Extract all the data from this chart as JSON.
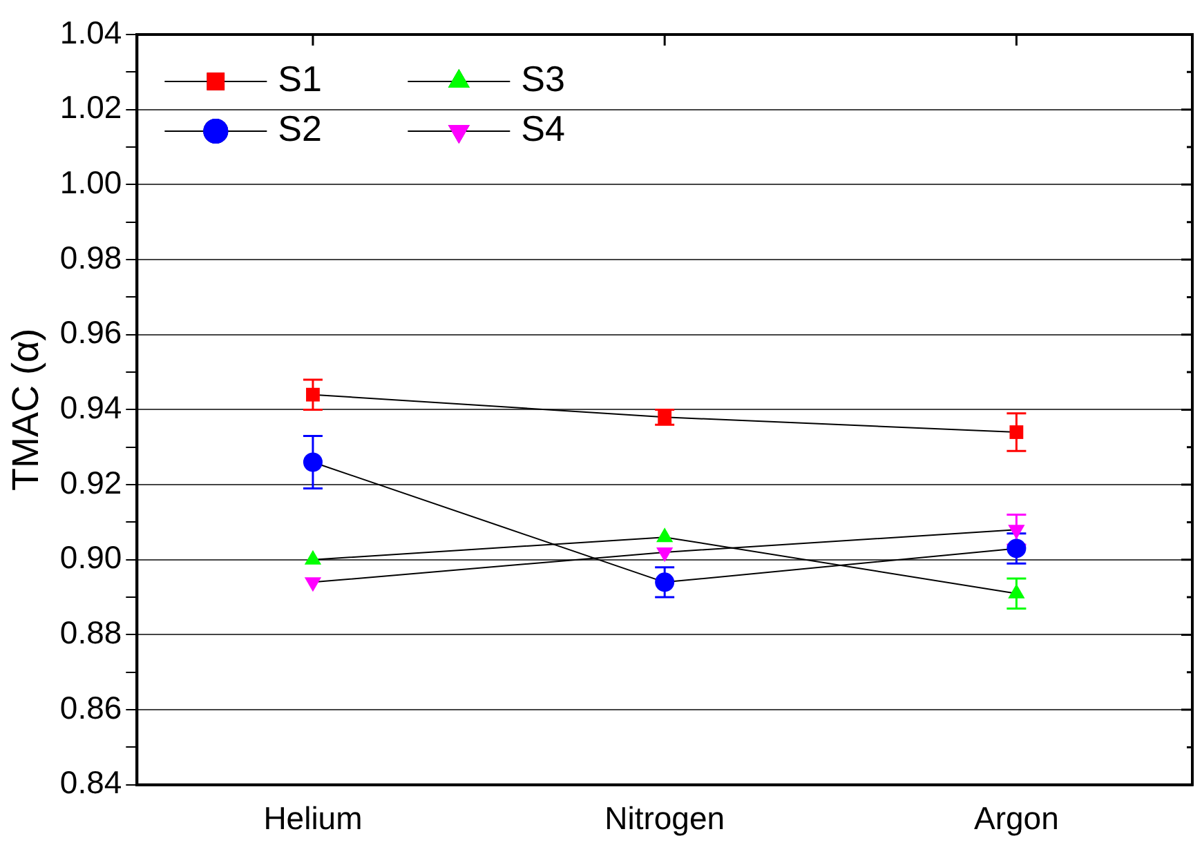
{
  "chart_data": {
    "type": "line",
    "ylabel": "TMAC (α)",
    "categories": [
      "Helium",
      "Nitrogen",
      "Argon"
    ],
    "series": [
      {
        "name": "S1",
        "color": "#ff0000",
        "marker": "square",
        "values": [
          0.944,
          0.938,
          0.934
        ],
        "errors": [
          0.004,
          0.002,
          0.005
        ]
      },
      {
        "name": "S2",
        "color": "#0000ff",
        "marker": "circle",
        "values": [
          0.926,
          0.894,
          0.903
        ],
        "errors": [
          0.007,
          0.004,
          0.004
        ]
      },
      {
        "name": "S3",
        "color": "#00ff00",
        "marker": "triangle",
        "values": [
          0.9,
          0.906,
          0.891
        ],
        "errors": [
          null,
          null,
          0.004
        ]
      },
      {
        "name": "S4",
        "color": "#ff00ff",
        "marker": "triangle-down",
        "values": [
          0.894,
          0.902,
          0.908
        ],
        "errors": [
          null,
          null,
          0.004
        ]
      }
    ],
    "ylim": [
      0.84,
      1.04
    ],
    "yticks": [
      {
        "value": 0.84,
        "label": "0.84"
      },
      {
        "value": 0.85,
        "label": null
      },
      {
        "value": 0.86,
        "label": "0.86"
      },
      {
        "value": 0.87,
        "label": null
      },
      {
        "value": 0.88,
        "label": "0.88"
      },
      {
        "value": 0.89,
        "label": null
      },
      {
        "value": 0.9,
        "label": "0.90"
      },
      {
        "value": 0.91,
        "label": null
      },
      {
        "value": 0.92,
        "label": "0.92"
      },
      {
        "value": 0.93,
        "label": null
      },
      {
        "value": 0.94,
        "label": "0.94"
      },
      {
        "value": 0.95,
        "label": null
      },
      {
        "value": 0.96,
        "label": "0.96"
      },
      {
        "value": 0.97,
        "label": null
      },
      {
        "value": 0.98,
        "label": "0.98"
      },
      {
        "value": 0.99,
        "label": null
      },
      {
        "value": 1.0,
        "label": "1.00"
      },
      {
        "value": 1.01,
        "label": null
      },
      {
        "value": 1.02,
        "label": "1.02"
      },
      {
        "value": 1.03,
        "label": null
      },
      {
        "value": 1.04,
        "label": "1.04"
      }
    ],
    "grid": "y",
    "legend": "top left",
    "line_style": "solid"
  }
}
